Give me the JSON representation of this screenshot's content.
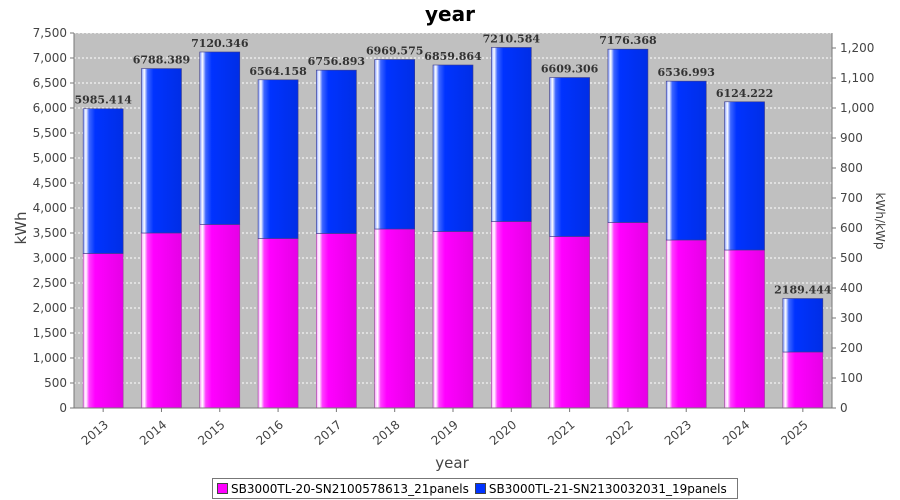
{
  "chart_data": {
    "type": "bar",
    "stacked": true,
    "title": "year",
    "xlabel": "year",
    "ylabel": "kWh",
    "ylabel_right": "kWh/kWp",
    "ylim": [
      0,
      7500
    ],
    "ylim_right": [
      0,
      1250
    ],
    "yticks": [
      "0",
      "500",
      "1,000",
      "1,500",
      "2,000",
      "2,500",
      "3,000",
      "3,500",
      "4,000",
      "4,500",
      "5,000",
      "5,500",
      "6,000",
      "6,500",
      "7,000",
      "7,500"
    ],
    "yticks_right": [
      "0",
      "100",
      "200",
      "300",
      "400",
      "500",
      "600",
      "700",
      "800",
      "900",
      "1,000",
      "1,100",
      "1,200"
    ],
    "categories": [
      "2013",
      "2014",
      "2015",
      "2016",
      "2017",
      "2018",
      "2019",
      "2020",
      "2021",
      "2022",
      "2023",
      "2024",
      "2025"
    ],
    "series": [
      {
        "name": "SB3000TL-20-SN2100578613_21panels",
        "color": "#ff00ff",
        "values": [
          3090,
          3500,
          3670,
          3390,
          3490,
          3580,
          3530,
          3730,
          3430,
          3710,
          3360,
          3160,
          1120
        ]
      },
      {
        "name": "SB3000TL-21-SN2130032031_19panels",
        "color": "#0033ff",
        "values": [
          2895.414,
          3288.389,
          3450.346,
          3174.158,
          3266.893,
          3389.575,
          3329.864,
          3480.584,
          3179.306,
          3466.368,
          3176.993,
          2964.222,
          1069.444
        ]
      }
    ],
    "totals": [
      "5985.414",
      "6788.389",
      "7120.346",
      "6564.158",
      "6756.893",
      "6969.575",
      "6859.864",
      "7210.584",
      "6609.306",
      "7176.368",
      "6536.993",
      "6124.222",
      "2189.444"
    ],
    "legend": "bottom",
    "grid": true
  }
}
